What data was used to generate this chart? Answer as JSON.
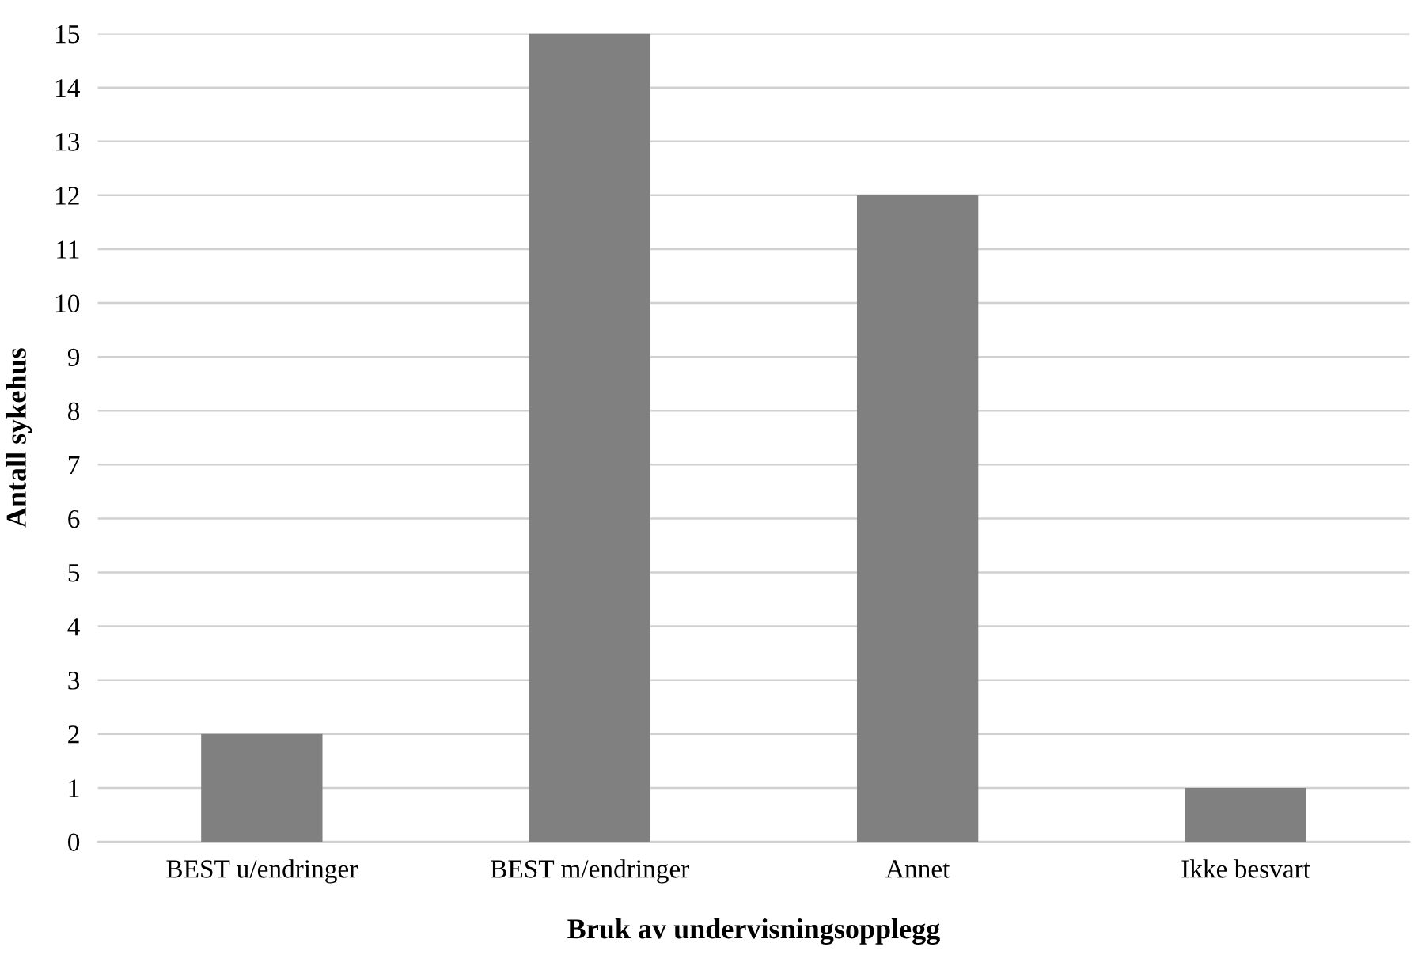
{
  "chart_data": {
    "type": "bar",
    "xlabel": "Bruk av undervisningsopplegg",
    "ylabel": "Antall sykehus",
    "categories": [
      "BEST u/endringer",
      "BEST m/endringer",
      "Annet",
      "Ikke besvart"
    ],
    "values": [
      2,
      15,
      12,
      1
    ],
    "color": "#808080",
    "ylim": [
      0,
      15
    ],
    "yticks": [
      0,
      1,
      2,
      3,
      4,
      5,
      6,
      7,
      8,
      9,
      10,
      11,
      12,
      13,
      14,
      15
    ],
    "grid": "y",
    "legend": false
  }
}
